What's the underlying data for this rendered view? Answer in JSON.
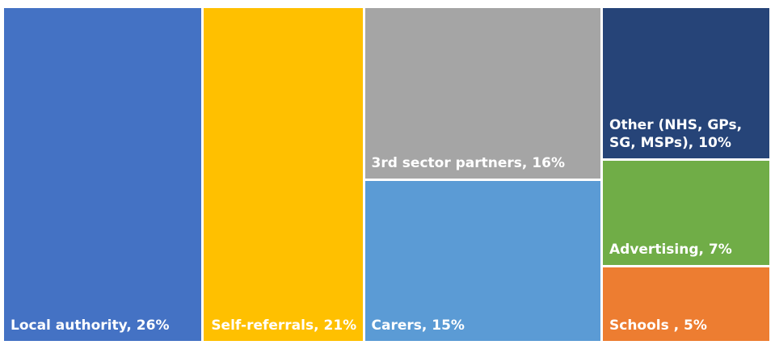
{
  "chart_data": {
    "type": "treemap",
    "categories": [
      "Local authority,",
      "Self-referrals,",
      "3rd sector partners,",
      "Carers,",
      "Other (NHS, GPs, SG, MSPs),",
      "Advertising,",
      "Schools ,"
    ],
    "values": [
      26,
      21,
      16,
      15,
      10,
      7,
      5
    ],
    "value_labels": [
      "26%",
      "21%",
      "16%",
      "15%",
      "10%",
      "7%",
      "5%"
    ],
    "colors": [
      "#4472c4",
      "#ffc000",
      "#a5a5a5",
      "#5b9bd5",
      "#264478",
      "#70ad47",
      "#ed7d31"
    ]
  }
}
